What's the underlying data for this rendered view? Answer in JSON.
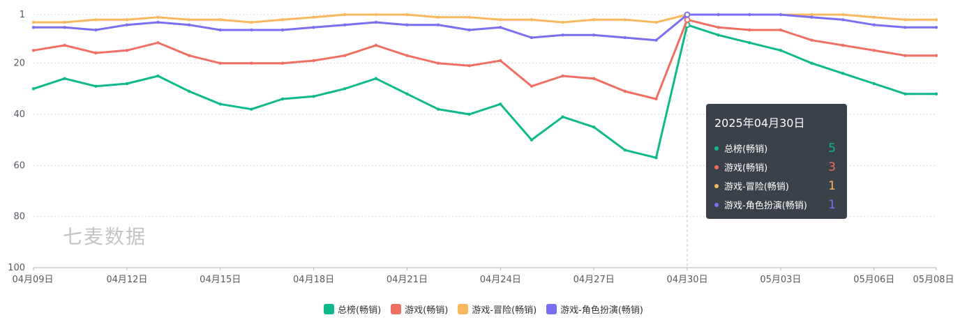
{
  "chart_data": {
    "type": "line",
    "title": "",
    "xlabel": "",
    "ylabel": "",
    "y_inverted": true,
    "ylim": [
      1,
      100
    ],
    "y_ticks": [
      "1",
      "20",
      "40",
      "60",
      "80",
      "100"
    ],
    "x": [
      "04月09日",
      "04月10日",
      "04月11日",
      "04月12日",
      "04月13日",
      "04月14日",
      "04月15日",
      "04月16日",
      "04月17日",
      "04月18日",
      "04月19日",
      "04月20日",
      "04月21日",
      "04月22日",
      "04月23日",
      "04月24日",
      "04月25日",
      "04月26日",
      "04月27日",
      "04月28日",
      "04月29日",
      "04月30日",
      "05月01日",
      "05月02日",
      "05月03日",
      "05月04日",
      "05月05日",
      "05月06日",
      "05月07日",
      "05月08日"
    ],
    "x_tick_labels": [
      "04月09日",
      "04月12日",
      "04月15日",
      "04月18日",
      "04月21日",
      "04月24日",
      "04月27日",
      "04月30日",
      "05月03日",
      "05月06日",
      "05月08日"
    ],
    "series": [
      {
        "name": "总榜(畅销)",
        "color": "#0fb98a",
        "values": [
          30,
          26,
          29,
          28,
          25,
          31,
          36,
          38,
          34,
          33,
          30,
          26,
          32,
          38,
          40,
          36,
          50,
          41,
          45,
          54,
          57,
          5,
          9,
          12,
          15,
          20,
          24,
          28,
          32,
          32
        ]
      },
      {
        "name": "游戏(畅销)",
        "color": "#ef6f63",
        "values": [
          15,
          13,
          16,
          15,
          12,
          17,
          20,
          20,
          20,
          19,
          17,
          13,
          17,
          20,
          21,
          19,
          29,
          25,
          26,
          31,
          34,
          3,
          6,
          7,
          7,
          11,
          13,
          15,
          17,
          17
        ]
      },
      {
        "name": "游戏-冒险(畅销)",
        "color": "#f8b860",
        "values": [
          4,
          4,
          3,
          3,
          2,
          3,
          3,
          4,
          3,
          2,
          1,
          1,
          1,
          2,
          2,
          3,
          3,
          4,
          3,
          3,
          4,
          1,
          1,
          1,
          1,
          1,
          1,
          2,
          3,
          3
        ]
      },
      {
        "name": "游戏-角色扮演(畅销)",
        "color": "#7b6ef0",
        "values": [
          6,
          6,
          7,
          5,
          4,
          5,
          7,
          7,
          7,
          6,
          5,
          4,
          5,
          5,
          7,
          6,
          10,
          9,
          9,
          10,
          11,
          1,
          1,
          1,
          1,
          2,
          3,
          5,
          6,
          6
        ]
      }
    ]
  },
  "tooltip": {
    "title": "2025年04月30日",
    "rows": [
      {
        "name": "总榜(畅销)",
        "value": "5",
        "color": "#0fb98a"
      },
      {
        "name": "游戏(畅销)",
        "value": "3",
        "color": "#ef6f63"
      },
      {
        "name": "游戏-冒险(畅销)",
        "value": "1",
        "color": "#f8b860"
      },
      {
        "name": "游戏-角色扮演(畅销)",
        "value": "1",
        "color": "#7b6ef0"
      }
    ]
  },
  "watermark": "七麦数据",
  "legend": [
    {
      "label": "总榜(畅销)",
      "color": "#0fb98a"
    },
    {
      "label": "游戏(畅销)",
      "color": "#ef6f63"
    },
    {
      "label": "游戏-冒险(畅销)",
      "color": "#f8b860"
    },
    {
      "label": "游戏-角色扮演(畅销)",
      "color": "#7b6ef0"
    }
  ]
}
